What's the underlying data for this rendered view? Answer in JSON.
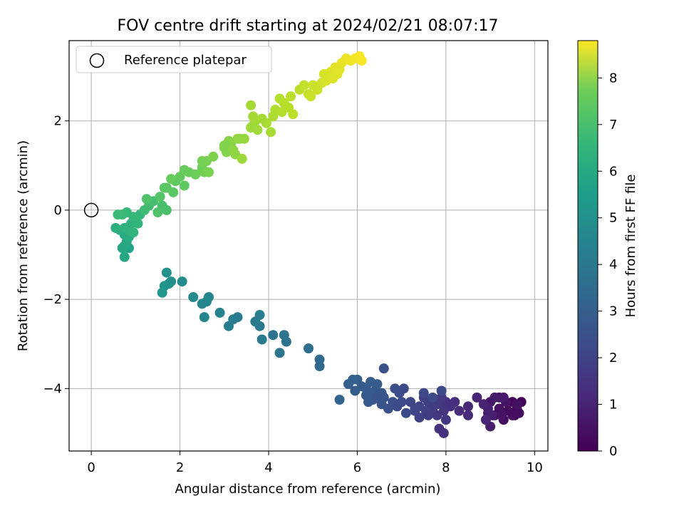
{
  "chart_data": {
    "type": "scatter",
    "title": "FOV centre drift starting at 2024/02/21 08:07:17",
    "xlabel": "Angular distance from reference (arcmin)",
    "ylabel": "Rotation from reference (arcmin)",
    "xlim": [
      -0.5,
      10.3
    ],
    "ylim": [
      -5.4,
      3.8
    ],
    "xticks": [
      0,
      2,
      4,
      6,
      8,
      10
    ],
    "yticks": [
      -4,
      -2,
      0,
      2
    ],
    "grid": true,
    "legend": {
      "position": "top-left",
      "label": "Reference platepar"
    },
    "reference_point": {
      "x": 0,
      "y": 0
    },
    "colorbar": {
      "label": "Hours from first FF file",
      "min": 0,
      "max": 8.8,
      "ticks": [
        0,
        1,
        2,
        3,
        4,
        5,
        6,
        7,
        8
      ],
      "colormap": "viridis"
    },
    "series": [
      {
        "points": [
          [
            9.5,
            -4.3,
            0.1
          ],
          [
            9.6,
            -4.45,
            0.1
          ],
          [
            9.7,
            -4.3,
            0.15
          ],
          [
            9.55,
            -4.6,
            0.2
          ],
          [
            9.4,
            -4.5,
            0.25
          ],
          [
            9.65,
            -4.55,
            0.3
          ],
          [
            9.3,
            -4.7,
            0.3
          ],
          [
            9.1,
            -4.6,
            0.35
          ],
          [
            9.2,
            -4.45,
            0.4
          ],
          [
            9.35,
            -4.3,
            0.45
          ],
          [
            9.2,
            -4.2,
            0.5
          ],
          [
            9.0,
            -4.3,
            0.55
          ],
          [
            9.1,
            -4.2,
            0.6
          ],
          [
            9.3,
            -4.2,
            0.6
          ],
          [
            8.95,
            -4.55,
            0.65
          ],
          [
            9.0,
            -4.85,
            0.7
          ],
          [
            9.05,
            -4.6,
            0.75
          ],
          [
            8.95,
            -4.45,
            0.8
          ],
          [
            8.85,
            -4.35,
            0.85
          ],
          [
            8.7,
            -4.2,
            0.9
          ],
          [
            9.5,
            -4.6,
            0.3
          ],
          [
            9.25,
            -4.6,
            0.45
          ],
          [
            9.6,
            -4.35,
            0.35
          ],
          [
            8.9,
            -4.7,
            0.9
          ],
          [
            8.5,
            -4.4,
            1.0
          ],
          [
            8.5,
            -4.6,
            1.05
          ],
          [
            8.3,
            -4.5,
            1.1
          ],
          [
            8.2,
            -4.3,
            1.15
          ],
          [
            8.0,
            -4.3,
            1.2
          ],
          [
            8.1,
            -4.4,
            1.25
          ],
          [
            7.9,
            -4.3,
            1.3
          ],
          [
            7.95,
            -4.5,
            1.35
          ],
          [
            7.8,
            -4.6,
            1.4
          ],
          [
            8.0,
            -4.7,
            1.45
          ],
          [
            7.9,
            -4.2,
            1.5
          ],
          [
            7.8,
            -4.35,
            1.55
          ],
          [
            7.7,
            -4.45,
            1.6
          ],
          [
            7.6,
            -4.3,
            1.65
          ],
          [
            7.5,
            -4.2,
            1.7
          ],
          [
            7.55,
            -4.5,
            1.75
          ],
          [
            7.4,
            -4.4,
            1.8
          ],
          [
            7.3,
            -4.5,
            1.85
          ],
          [
            7.2,
            -4.3,
            1.9
          ],
          [
            7.5,
            -4.1,
            1.95
          ],
          [
            7.9,
            -4.05,
            2.0
          ],
          [
            7.7,
            -4.2,
            2.0
          ],
          [
            7.85,
            -4.9,
            1.3
          ],
          [
            7.95,
            -5.0,
            1.2
          ],
          [
            7.6,
            -4.6,
            1.6
          ],
          [
            7.4,
            -4.65,
            1.75
          ],
          [
            7.1,
            -4.55,
            2.0
          ],
          [
            7.0,
            -4.3,
            2.05
          ],
          [
            6.95,
            -4.1,
            2.1
          ],
          [
            6.85,
            -4.0,
            2.1
          ],
          [
            6.8,
            -4.3,
            2.15
          ],
          [
            6.7,
            -4.45,
            2.2
          ],
          [
            6.6,
            -4.2,
            2.25
          ],
          [
            6.55,
            -4.35,
            2.3
          ],
          [
            6.5,
            -4.2,
            2.35
          ],
          [
            6.4,
            -4.05,
            2.4
          ],
          [
            6.3,
            -4.1,
            2.45
          ],
          [
            6.2,
            -4.0,
            2.5
          ],
          [
            6.1,
            -3.95,
            2.55
          ],
          [
            6.0,
            -3.8,
            2.6
          ],
          [
            6.3,
            -3.85,
            2.6
          ],
          [
            6.45,
            -3.9,
            2.55
          ],
          [
            6.25,
            -4.3,
            2.5
          ],
          [
            6.35,
            -4.25,
            2.45
          ],
          [
            6.55,
            -4.1,
            2.35
          ],
          [
            6.2,
            -4.15,
            2.5
          ],
          [
            5.95,
            -4.05,
            2.6
          ],
          [
            5.8,
            -3.9,
            2.65
          ],
          [
            5.9,
            -3.8,
            2.7
          ],
          [
            6.6,
            -3.55,
            2.2
          ],
          [
            6.9,
            -4.4,
            2.0
          ],
          [
            7.05,
            -4.0,
            2.0
          ],
          [
            7.3,
            -4.45,
            1.85
          ],
          [
            6.45,
            -4.2,
            2.3
          ],
          [
            5.6,
            -4.25,
            2.8
          ],
          [
            5.15,
            -3.35,
            3.0
          ],
          [
            5.15,
            -3.5,
            3.05
          ],
          [
            4.9,
            -3.1,
            3.15
          ],
          [
            4.35,
            -2.8,
            3.3
          ],
          [
            4.1,
            -2.8,
            3.35
          ],
          [
            4.4,
            -2.95,
            3.4
          ],
          [
            4.25,
            -3.2,
            3.45
          ],
          [
            3.8,
            -2.6,
            3.55
          ],
          [
            3.7,
            -2.5,
            3.6
          ],
          [
            3.8,
            -2.35,
            3.65
          ],
          [
            3.85,
            -2.9,
            3.6
          ],
          [
            3.3,
            -2.4,
            3.7
          ],
          [
            3.2,
            -2.45,
            3.75
          ],
          [
            3.1,
            -2.6,
            3.8
          ],
          [
            2.9,
            -2.3,
            3.85
          ],
          [
            2.65,
            -1.95,
            4.0
          ],
          [
            2.6,
            -2.05,
            4.05
          ],
          [
            2.5,
            -2.1,
            4.1
          ],
          [
            2.55,
            -2.4,
            4.1
          ],
          [
            2.3,
            -1.95,
            4.2
          ],
          [
            2.05,
            -1.6,
            4.3
          ],
          [
            1.8,
            -1.6,
            4.4
          ],
          [
            1.75,
            -1.65,
            4.45
          ],
          [
            1.7,
            -1.4,
            4.5
          ],
          [
            1.65,
            -1.7,
            4.55
          ],
          [
            1.6,
            -1.85,
            4.6
          ],
          [
            0.85,
            -0.85,
            5.1
          ],
          [
            0.75,
            -1.05,
            5.15
          ],
          [
            0.75,
            -0.8,
            5.2
          ],
          [
            0.7,
            -0.85,
            5.25
          ],
          [
            0.8,
            -0.7,
            5.3
          ],
          [
            0.85,
            -0.6,
            5.35
          ],
          [
            0.75,
            -0.55,
            5.4
          ],
          [
            0.65,
            -0.45,
            5.45
          ],
          [
            0.55,
            -0.4,
            5.5
          ],
          [
            0.75,
            -0.4,
            5.55
          ],
          [
            0.9,
            -0.3,
            5.6
          ],
          [
            0.85,
            -0.45,
            5.65
          ],
          [
            0.95,
            -0.5,
            5.7
          ],
          [
            1.05,
            -0.3,
            5.75
          ],
          [
            1.1,
            -0.1,
            5.8
          ],
          [
            0.95,
            -0.15,
            5.85
          ],
          [
            0.8,
            -0.05,
            5.9
          ],
          [
            0.7,
            -0.1,
            5.95
          ],
          [
            0.6,
            -0.1,
            6.0
          ],
          [
            1.2,
            0.0,
            6.05
          ],
          [
            1.3,
            0.1,
            6.1
          ],
          [
            1.4,
            0.2,
            6.15
          ],
          [
            1.6,
            0.1,
            6.2
          ],
          [
            1.7,
            0.0,
            6.25
          ],
          [
            1.5,
            -0.05,
            6.3
          ],
          [
            1.25,
            0.25,
            6.35
          ],
          [
            1.55,
            0.3,
            6.4
          ],
          [
            1.7,
            0.5,
            6.45
          ],
          [
            1.85,
            0.4,
            6.5
          ],
          [
            1.9,
            0.65,
            6.55
          ],
          [
            2.1,
            0.55,
            6.6
          ],
          [
            2.0,
            0.75,
            6.65
          ],
          [
            2.1,
            0.9,
            6.7
          ],
          [
            2.2,
            0.85,
            6.75
          ],
          [
            2.35,
            0.8,
            6.8
          ],
          [
            1.8,
            0.7,
            6.7
          ],
          [
            1.65,
            0.5,
            6.5
          ],
          [
            2.5,
            0.95,
            6.85
          ],
          [
            2.55,
            0.85,
            6.9
          ],
          [
            2.6,
            1.1,
            6.95
          ],
          [
            2.65,
            0.85,
            7.0
          ],
          [
            2.75,
            1.2,
            7.05
          ],
          [
            2.5,
            1.1,
            6.95
          ],
          [
            3.0,
            1.4,
            7.1
          ],
          [
            3.05,
            1.3,
            7.15
          ],
          [
            3.15,
            1.5,
            7.2
          ],
          [
            3.2,
            1.35,
            7.25
          ],
          [
            3.25,
            1.25,
            7.3
          ],
          [
            3.3,
            1.6,
            7.35
          ],
          [
            3.45,
            1.6,
            7.4
          ],
          [
            3.4,
            1.15,
            7.45
          ],
          [
            3.6,
            1.85,
            7.5
          ],
          [
            3.65,
            1.9,
            7.5
          ],
          [
            3.7,
            2.0,
            7.55
          ],
          [
            3.75,
            1.8,
            7.55
          ],
          [
            3.65,
            2.1,
            7.6
          ],
          [
            3.6,
            2.35,
            7.6
          ],
          [
            3.95,
            1.95,
            7.65
          ],
          [
            4.05,
            1.75,
            7.65
          ],
          [
            4.1,
            2.1,
            7.7
          ],
          [
            4.15,
            2.25,
            7.75
          ],
          [
            4.25,
            2.5,
            7.8
          ],
          [
            4.35,
            2.4,
            7.85
          ],
          [
            4.45,
            2.3,
            7.85
          ],
          [
            4.55,
            2.15,
            7.9
          ],
          [
            4.7,
            2.7,
            7.95
          ],
          [
            4.8,
            2.8,
            8.0
          ],
          [
            4.9,
            2.6,
            8.05
          ],
          [
            4.95,
            2.55,
            8.1
          ],
          [
            5.1,
            2.7,
            8.15
          ],
          [
            5.2,
            2.85,
            8.2
          ],
          [
            5.25,
            3.05,
            8.25
          ],
          [
            5.3,
            2.9,
            8.3
          ],
          [
            5.4,
            3.1,
            8.35
          ],
          [
            5.5,
            3.2,
            8.4
          ],
          [
            5.55,
            3.05,
            8.45
          ],
          [
            5.65,
            3.3,
            8.5
          ],
          [
            5.75,
            3.4,
            8.55
          ],
          [
            5.85,
            3.35,
            8.6
          ],
          [
            5.95,
            3.4,
            8.65
          ],
          [
            6.05,
            3.45,
            8.7
          ],
          [
            6.1,
            3.35,
            8.75
          ],
          [
            5.6,
            3.15,
            8.45
          ],
          [
            5.45,
            2.95,
            8.35
          ],
          [
            5.0,
            2.8,
            8.1
          ],
          [
            4.5,
            2.55,
            7.9
          ],
          [
            4.3,
            2.2,
            7.8
          ],
          [
            3.85,
            2.05,
            7.6
          ],
          [
            3.35,
            1.6,
            7.35
          ],
          [
            3.1,
            1.55,
            7.2
          ],
          [
            3.0,
            1.45,
            7.1
          ]
        ]
      }
    ]
  }
}
